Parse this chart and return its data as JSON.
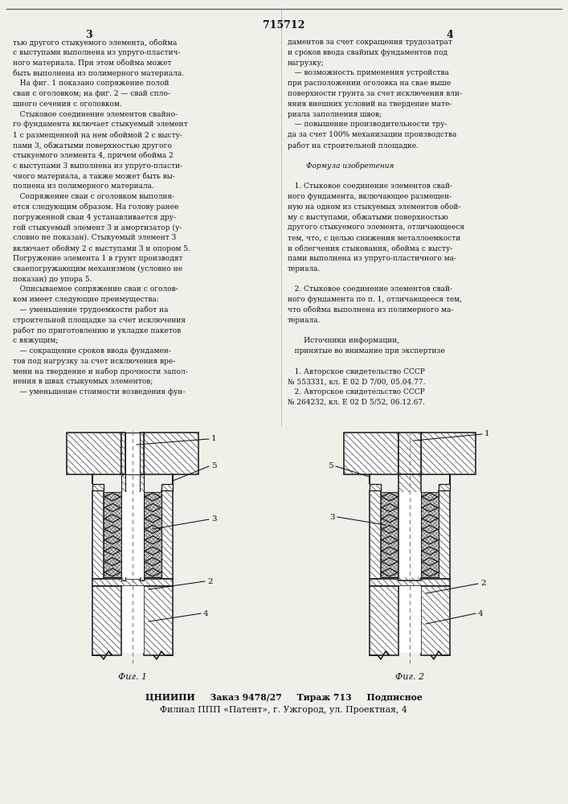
{
  "page_number": "715712",
  "col_left": "3",
  "col_right": "4",
  "fig1_label": "Фиг. 1",
  "fig2_label": "Фиг. 2",
  "bottom_line1": "ЦНИИПИ     Заказ 9478/27     Тираж 713     Подписное",
  "bottom_line2": "Филиал ППП «Патент», г. Ужгород, ул. Проектная, 4",
  "bg_color": "#f0efe8",
  "text_color": "#111111",
  "left_text": [
    "тью другого стыкуемого элемента, обойма",
    "с выступами выполнена из упруго-пластич-",
    "ного материала. При этом обойма может",
    "быть выполнена из полимерного материала.",
    "   На фиг. 1 показано сопряжение полой",
    "сваи с оголовком; на фиг. 2 — свай спло-",
    "шного сечения с оголовком.",
    "   Стыковое соединение элементов свайно-",
    "го фундамента включает стыкуемый элемент",
    "1 с размещенной на нем обоймой 2 с высту-",
    "пами 3, обжатыми поверхностью другого",
    "стыкуемого элемента 4, причем обойма 2",
    "с выступами 3 выполнена из упруго-пласти-",
    "чного материала, а также может быть вы-",
    "полнена из полимерного материала.",
    "   Сопряжение сваи с оголовком выполня-",
    "ется следующим образом. На голову ранее",
    "погруженной сваи 4 устанавливается дру-",
    "гой стыкуемый элемент 3 и амортизатор (у-",
    "словно не показан). Стыкуемый элемент 3",
    "включает обойму 2 с выступами 3 и опором 5.",
    "Погружение элемента 1 в грунт производят",
    "сваепогружающим механизмом (условно не",
    "показан) до упора 5.",
    "   Описываемое сопряжение сваи с оголов-",
    "ком имеет следующие преимущества:",
    "   — уменьшение трудоемкости работ на",
    "строительной площадке за счет исключения",
    "работ по приготовлению и укладке пакетов",
    "с вяжущим;",
    "   — сокращение сроков ввода фундамен-",
    "тов под нагрузку за счет исключения вре-",
    "мени на твердение и набор прочности запол-",
    "нения в швах стыкуемых элементов;",
    "   — уменьшение стоимости возведения фун-"
  ],
  "right_text": [
    "даментов за счет сокращения трудозатрат",
    "и сроков ввода свайных фундаментов под",
    "нагрузку;",
    "   — возможность применения устройства",
    "при расположении оголовка на свае выше",
    "поверхности грунта за счет исключения вли-",
    "яния внешних условий на твердение мате-",
    "риала заполнения швов;",
    "   — повышение производительности тру-",
    "да за счет 100% механизации производства",
    "работ на строительной площадке.",
    "",
    "        Формула изобретения",
    "",
    "   1. Стыковое соединение элементов свай-",
    "ного фундамента, включающее размещен-",
    "ную на одном из стыкуемых элементов обой-",
    "му с выступами, обжатыми поверхностью",
    "другого стыкуемого элемента, отличающееся",
    "тем, что, с целью снижения металлоемкости",
    "и облегчения стыкования, обойма с высту-",
    "пами выполнена из упруго-пластичного ма-",
    "териала.",
    "",
    "   2. Стыковое соединение элементов свай-",
    "ного фундамента по п. 1, отличающееся тем,",
    "что обойма выполнена из полимерного ма-",
    "териала.",
    "",
    "       Источники информации,",
    "   принятые во внимание при экспертизе",
    "",
    "   1. Авторское свидетельство СССР",
    "№ 553331, кл. Е 02 D 7/00, 05.04.77.",
    "   2. Авторское свидетельство СССР",
    "№ 264232, кл. Е 02 D 5/52, 06.12.67."
  ]
}
